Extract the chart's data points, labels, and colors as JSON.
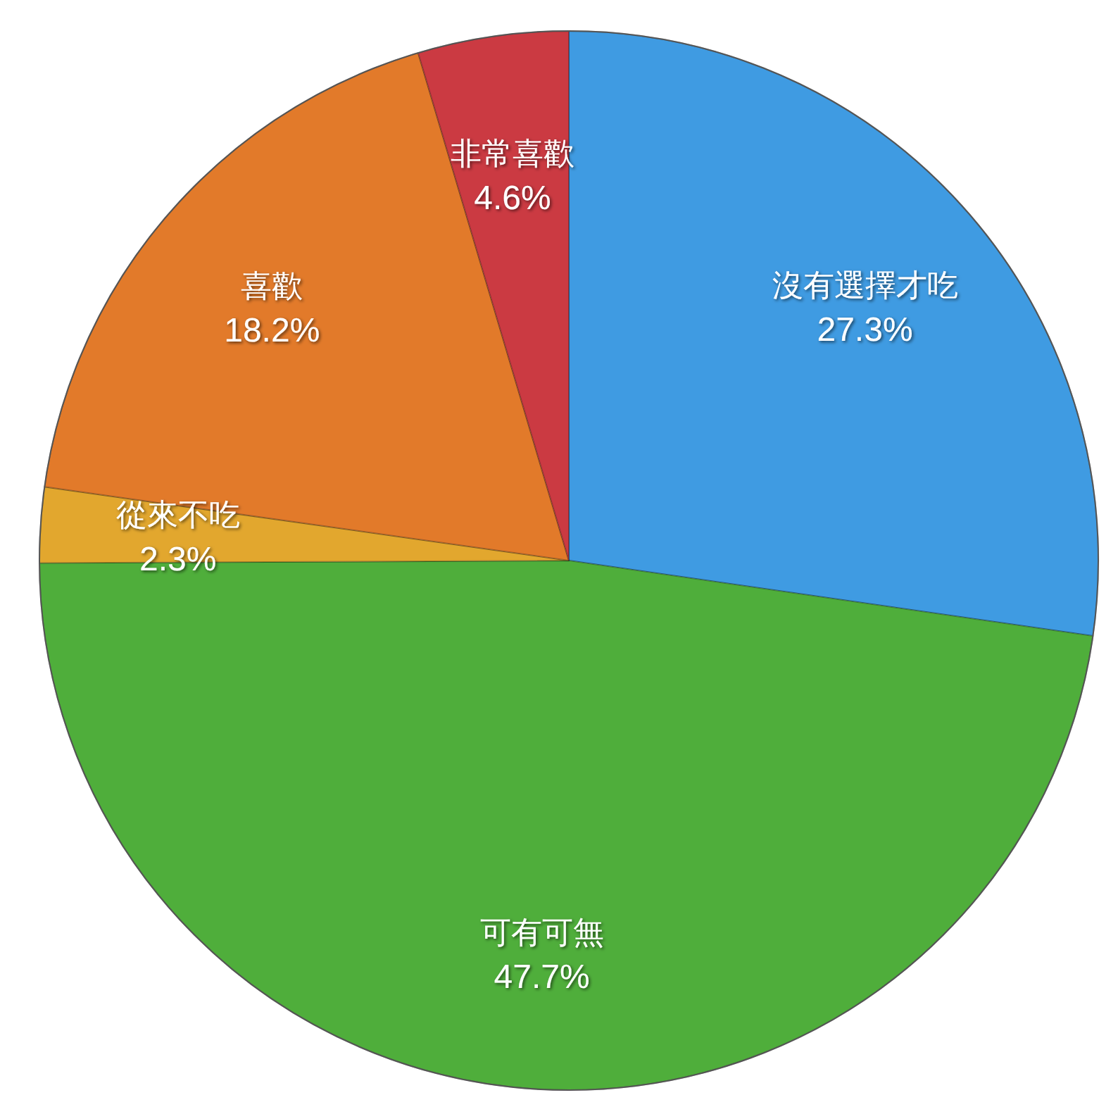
{
  "chart_data": {
    "type": "pie",
    "categories": [
      "沒有選擇才吃",
      "可有可無",
      "從來不吃",
      "喜歡",
      "非常喜歡"
    ],
    "values": [
      27.3,
      47.7,
      2.3,
      18.2,
      4.6
    ],
    "colors": [
      "#3f9be2",
      "#4fae3b",
      "#e2a72e",
      "#e27a2a",
      "#cb3a42"
    ],
    "value_labels": [
      "27.3%",
      "47.7%",
      "2.3%",
      "18.2%",
      "4.6%"
    ]
  }
}
